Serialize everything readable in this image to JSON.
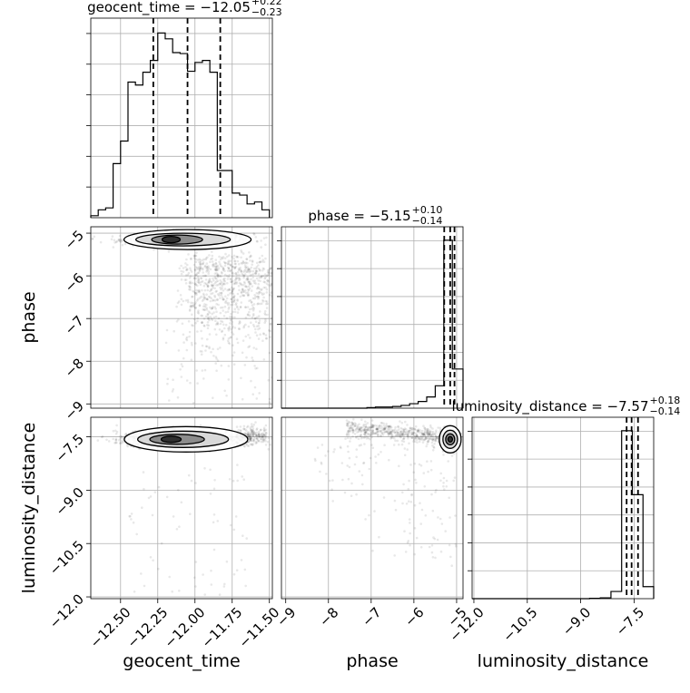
{
  "chart_data": {
    "type": "corner",
    "parameters": [
      "geocent_time",
      "phase",
      "luminosity_distance"
    ],
    "grid": true,
    "ranges": {
      "geocent_time": [
        -12.7,
        -11.48
      ],
      "phase": [
        -9.1,
        -4.85
      ],
      "luminosity_distance": [
        -12.05,
        -6.95
      ]
    },
    "ticks": {
      "geocent_time": [
        "-12.50",
        "-12.25",
        "-12.00",
        "-11.75",
        "-11.50"
      ],
      "phase": [
        "-9",
        "-8",
        "-7",
        "-6",
        "-5"
      ],
      "luminosity_distance": [
        "-12.0",
        "-10.5",
        "-9.0",
        "-7.5"
      ]
    },
    "tick_values": {
      "geocent_time": [
        -12.5,
        -12.25,
        -12.0,
        -11.75,
        -11.5
      ],
      "phase": [
        -9,
        -8,
        -7,
        -6,
        -5
      ],
      "luminosity_distance": [
        -12.0,
        -10.5,
        -9.0,
        -7.5
      ]
    },
    "titles": [
      {
        "param": "geocent_time",
        "text": "geocent_time = −12.05",
        "plus": "+0.22",
        "minus": "−0.23"
      },
      {
        "param": "phase",
        "text": "phase = −5.15",
        "plus": "+0.10",
        "minus": "−0.14"
      },
      {
        "param": "luminosity_distance",
        "text": "luminosity_distance = −7.57",
        "plus": "+0.18",
        "minus": "−0.14"
      }
    ],
    "histograms": {
      "geocent_time": {
        "bin_edges": [
          -12.7,
          -12.65,
          -12.6,
          -12.55,
          -12.5,
          -12.45,
          -12.4,
          -12.35,
          -12.3,
          -12.25,
          -12.2,
          -12.15,
          -12.1,
          -12.05,
          -12.0,
          -11.95,
          -11.9,
          -11.85,
          -11.8,
          -11.75,
          -11.7,
          -11.65,
          -11.6,
          -11.55,
          -11.5
        ],
        "counts": [
          2,
          8,
          10,
          55,
          78,
          138,
          135,
          148,
          160,
          188,
          182,
          168,
          167,
          149,
          158,
          160,
          148,
          48,
          48,
          25,
          23,
          14,
          16,
          8
        ],
        "quantiles": [
          -12.28,
          -12.05,
          -11.83
        ]
      },
      "phase": {
        "bin_edges": [
          -9.1,
          -8.9,
          -8.7,
          -8.5,
          -8.3,
          -8.1,
          -7.9,
          -7.7,
          -7.5,
          -7.3,
          -7.1,
          -6.9,
          -6.7,
          -6.5,
          -6.3,
          -6.1,
          -5.9,
          -5.7,
          -5.5,
          -5.3,
          -5.1,
          -4.85
        ],
        "counts": [
          0,
          0,
          0,
          0,
          0,
          0,
          0,
          0,
          0,
          0,
          1,
          2,
          2,
          3,
          5,
          8,
          12,
          20,
          40,
          300,
          70
        ],
        "quantiles": [
          -5.29,
          -5.15,
          -5.05
        ]
      },
      "luminosity_distance": {
        "bin_edges": [
          -12.05,
          -11.75,
          -11.45,
          -11.15,
          -10.85,
          -10.55,
          -10.25,
          -9.95,
          -9.65,
          -9.35,
          -9.05,
          -8.75,
          -8.45,
          -8.15,
          -7.85,
          -7.55,
          -7.25,
          -6.95
        ],
        "counts": [
          0,
          0,
          0,
          0,
          0,
          0,
          0,
          0,
          0,
          0,
          0,
          1,
          2,
          18,
          420,
          260,
          30
        ],
        "quantiles": [
          -7.71,
          -7.57,
          -7.39
        ]
      }
    },
    "peaks": {
      "geocent_time": -12.05,
      "phase": -5.15,
      "luminosity_distance": -7.57
    }
  }
}
